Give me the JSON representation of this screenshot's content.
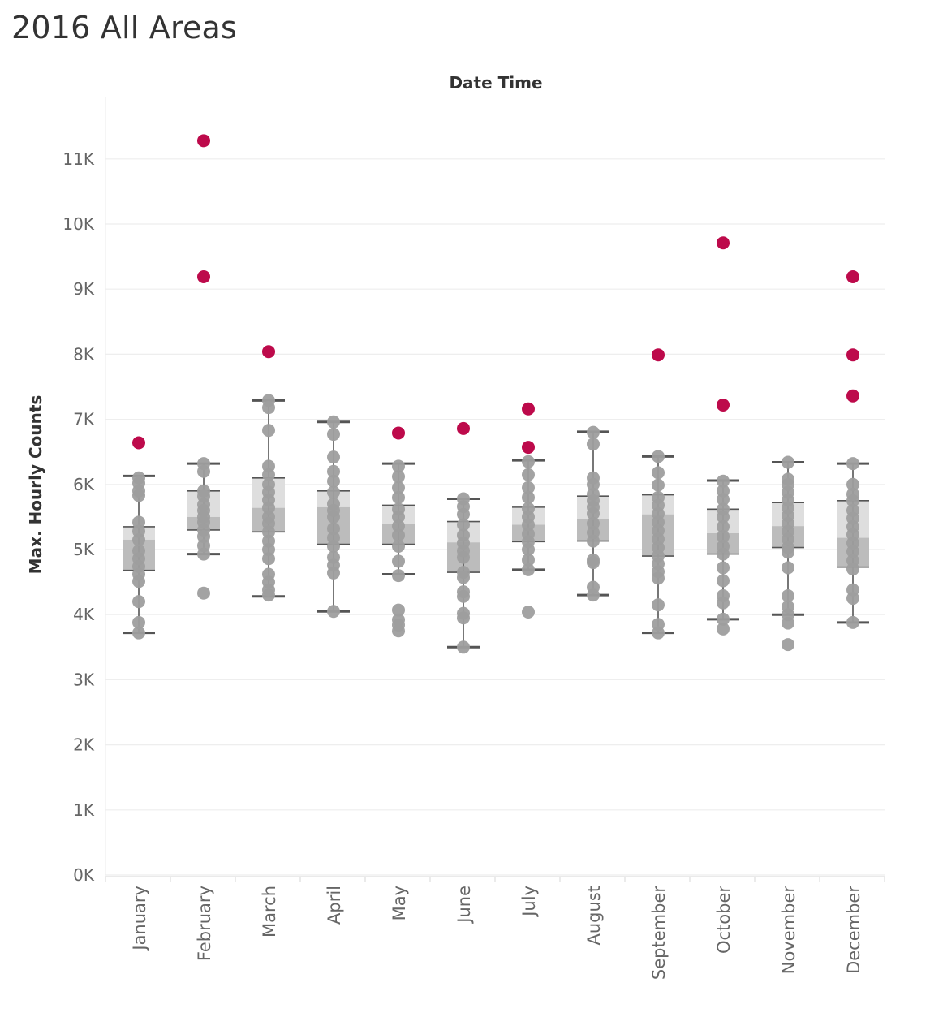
{
  "title": "2016 All Areas",
  "chart_data": {
    "type": "box",
    "title": "2016 All Areas",
    "column_header": "Date Time",
    "ylabel": "Max. Hourly Counts",
    "xlabel": "",
    "ylim": [
      0,
      11600
    ],
    "yticks": [
      0,
      1000,
      2000,
      3000,
      4000,
      5000,
      6000,
      7000,
      8000,
      9000,
      10000,
      11000
    ],
    "ytick_labels": [
      "0K",
      "1K",
      "2K",
      "3K",
      "4K",
      "5K",
      "6K",
      "7K",
      "8K",
      "9K",
      "10K",
      "11K"
    ],
    "grid": true,
    "colors": {
      "point": "#9e9e9e",
      "outlier": "#bd0a4b",
      "box_upper": "#dedede",
      "box_lower": "#bcbcbc",
      "whisker": "#555555",
      "grid": "#eeeeee"
    },
    "categories": [
      "January",
      "February",
      "March",
      "April",
      "May",
      "June",
      "July",
      "August",
      "September",
      "October",
      "November",
      "December"
    ],
    "boxes": [
      {
        "month": "January",
        "whisker_low": 3720,
        "q1": 4680,
        "median": 5150,
        "q3": 5350,
        "whisker_high": 6130
      },
      {
        "month": "February",
        "whisker_low": 4930,
        "q1": 5300,
        "median": 5500,
        "q3": 5900,
        "whisker_high": 6320
      },
      {
        "month": "March",
        "whisker_low": 4280,
        "q1": 5270,
        "median": 5640,
        "q3": 6100,
        "whisker_high": 7290
      },
      {
        "month": "April",
        "whisker_low": 4050,
        "q1": 5080,
        "median": 5650,
        "q3": 5900,
        "whisker_high": 6960
      },
      {
        "month": "May",
        "whisker_low": 4620,
        "q1": 5080,
        "median": 5390,
        "q3": 5680,
        "whisker_high": 6320
      },
      {
        "month": "June",
        "whisker_low": 3500,
        "q1": 4650,
        "median": 5110,
        "q3": 5430,
        "whisker_high": 5780
      },
      {
        "month": "July",
        "whisker_low": 4690,
        "q1": 5120,
        "median": 5380,
        "q3": 5650,
        "whisker_high": 6370
      },
      {
        "month": "August",
        "whisker_low": 4300,
        "q1": 5130,
        "median": 5470,
        "q3": 5820,
        "whisker_high": 6810
      },
      {
        "month": "September",
        "whisker_low": 3720,
        "q1": 4900,
        "median": 5540,
        "q3": 5840,
        "whisker_high": 6430
      },
      {
        "month": "October",
        "whisker_low": 3930,
        "q1": 4930,
        "median": 5250,
        "q3": 5620,
        "whisker_high": 6060
      },
      {
        "month": "November",
        "whisker_low": 4000,
        "q1": 5030,
        "median": 5360,
        "q3": 5720,
        "whisker_high": 6340
      },
      {
        "month": "December",
        "whisker_low": 3880,
        "q1": 4730,
        "median": 5180,
        "q3": 5750,
        "whisker_high": 6320
      }
    ],
    "points": [
      {
        "month": "January",
        "values": [
          3720,
          3880,
          4200,
          4510,
          4620,
          4740,
          4860,
          4980,
          5150,
          5280,
          5420,
          5830,
          5900,
          6020,
          6100
        ]
      },
      {
        "month": "February",
        "values": [
          4330,
          4930,
          5060,
          5200,
          5300,
          5420,
          5500,
          5600,
          5690,
          5820,
          5900,
          6200,
          6320
        ]
      },
      {
        "month": "March",
        "values": [
          4300,
          4380,
          4500,
          4620,
          4860,
          5000,
          5130,
          5270,
          5400,
          5500,
          5640,
          5760,
          5880,
          6000,
          6150,
          6280,
          6830,
          7180,
          7290
        ]
      },
      {
        "month": "April",
        "values": [
          4050,
          4640,
          4760,
          4880,
          5050,
          5180,
          5320,
          5500,
          5600,
          5700,
          5880,
          6050,
          6200,
          6420,
          6770,
          6960
        ]
      },
      {
        "month": "May",
        "values": [
          3750,
          3840,
          3920,
          4070,
          4600,
          4820,
          5050,
          5220,
          5360,
          5500,
          5620,
          5800,
          5950,
          6120,
          6280
        ]
      },
      {
        "month": "June",
        "values": [
          3500,
          3950,
          4020,
          4280,
          4350,
          4570,
          4650,
          4880,
          4980,
          5100,
          5220,
          5380,
          5540,
          5660,
          5780
        ]
      },
      {
        "month": "July",
        "values": [
          4040,
          4690,
          4840,
          5000,
          5120,
          5240,
          5380,
          5500,
          5630,
          5800,
          5950,
          6150,
          6350
        ]
      },
      {
        "month": "August",
        "values": [
          4300,
          4420,
          4800,
          4840,
          5130,
          5260,
          5400,
          5550,
          5650,
          5750,
          5850,
          6000,
          6100,
          6620,
          6800
        ]
      },
      {
        "month": "September",
        "values": [
          3720,
          3850,
          4150,
          4560,
          4660,
          4780,
          4900,
          5030,
          5160,
          5290,
          5420,
          5550,
          5680,
          5800,
          5990,
          6180,
          6430
        ]
      },
      {
        "month": "October",
        "values": [
          3780,
          3930,
          4180,
          4290,
          4520,
          4720,
          4930,
          5050,
          5200,
          5350,
          5500,
          5620,
          5770,
          5900,
          6050
        ]
      },
      {
        "month": "November",
        "values": [
          3540,
          3870,
          4000,
          4120,
          4290,
          4720,
          4960,
          5030,
          5160,
          5280,
          5400,
          5520,
          5640,
          5760,
          5880,
          6000,
          6080,
          6340
        ]
      },
      {
        "month": "December",
        "values": [
          3880,
          4250,
          4380,
          4700,
          4830,
          4970,
          5100,
          5230,
          5350,
          5480,
          5600,
          5750,
          5850,
          6000,
          6320
        ]
      }
    ],
    "outliers": [
      {
        "month": "January",
        "values": [
          6640
        ]
      },
      {
        "month": "February",
        "values": [
          9190,
          11280
        ]
      },
      {
        "month": "March",
        "values": [
          8040
        ]
      },
      {
        "month": "May",
        "values": [
          6790
        ]
      },
      {
        "month": "June",
        "values": [
          6860
        ]
      },
      {
        "month": "July",
        "values": [
          6570,
          7160
        ]
      },
      {
        "month": "September",
        "values": [
          7990
        ]
      },
      {
        "month": "October",
        "values": [
          7220,
          9710
        ]
      },
      {
        "month": "December",
        "values": [
          7360,
          7990,
          9190
        ]
      }
    ]
  }
}
